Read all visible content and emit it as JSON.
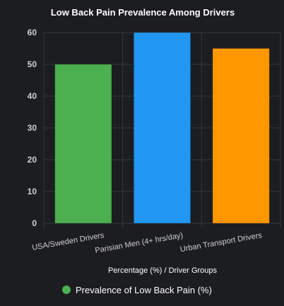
{
  "chart_data": {
    "type": "bar",
    "title": "Low Back Pain Prevalence Among Drivers",
    "categories": [
      "USA/Sweden Drivers",
      "Parisian Men (4+ hrs/day)",
      "Urban Transport Drivers"
    ],
    "series": [
      {
        "name": "Prevalence of Low Back Pain (%)",
        "values": [
          50,
          60,
          55
        ]
      }
    ],
    "bar_colors": [
      "#4caf50",
      "#2196f3",
      "#ff9800"
    ],
    "legend_color": "#4caf50",
    "xlabel": "Percentage (%) / Driver Groups",
    "ylabel": "",
    "ylim": [
      0,
      60
    ],
    "yticks": [
      0,
      10,
      20,
      30,
      40,
      50,
      60
    ],
    "grid": true,
    "legend_position": "bottom"
  }
}
